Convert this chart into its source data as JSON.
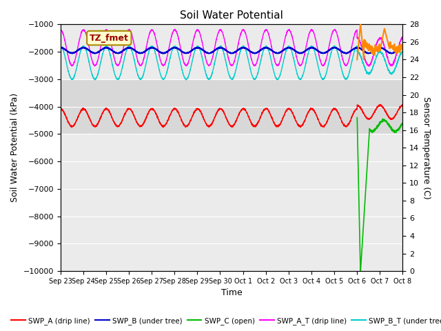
{
  "title": "Soil Water Potential",
  "xlabel": "Time",
  "ylabel_left": "Soil Water Potential (kPa)",
  "ylabel_right": "Sensor Temperature (C)",
  "ylim_left": [
    -10000,
    -1000
  ],
  "ylim_right": [
    0,
    28
  ],
  "yticks_left": [
    -10000,
    -9000,
    -8000,
    -7000,
    -6000,
    -5000,
    -4000,
    -3000,
    -2000,
    -1000
  ],
  "yticks_right": [
    0,
    2,
    4,
    6,
    8,
    10,
    12,
    14,
    16,
    18,
    20,
    22,
    24,
    26,
    28
  ],
  "annotation_box": "TZ_fmet",
  "colors": {
    "SWP_A": "#ff0000",
    "SWP_B": "#0000cc",
    "SWP_C": "#00bb00",
    "SWP_A_T": "#ff00ff",
    "SWP_B_T": "#00cccc",
    "SWP_C_T": "#ff8800"
  },
  "tick_labels": [
    "Sep 23",
    "Sep 24",
    "Sep 25",
    "Sep 26",
    "Sep 27",
    "Sep 28",
    "Sep 29",
    "Sep 30",
    "Oct 1",
    "Oct 2",
    "Oct 3",
    "Oct 4",
    "Oct 5",
    "Oct 6",
    "Oct 7",
    "Oct 8"
  ],
  "figsize": [
    6.4,
    4.8
  ],
  "dpi": 100
}
